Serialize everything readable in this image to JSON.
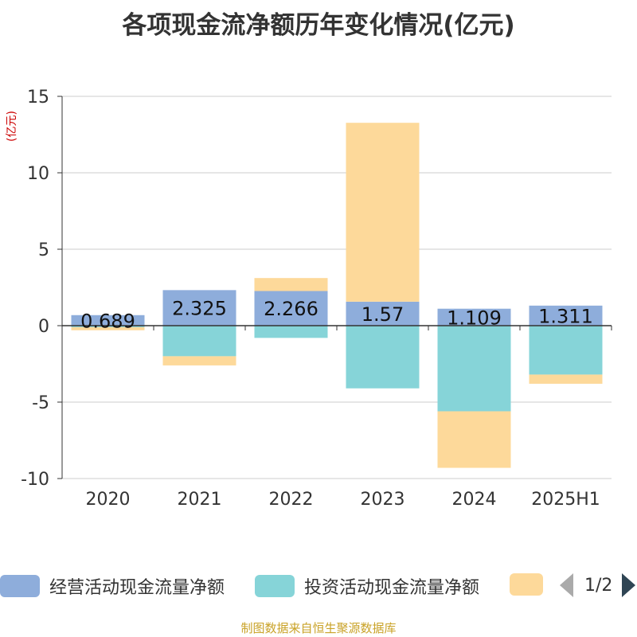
{
  "title": "各项现金流净额历年变化情况(亿元)",
  "unit_label": "(亿元)",
  "legend": {
    "items": [
      {
        "label": "经营活动现金流量净额",
        "color": "#8eaddb"
      },
      {
        "label": "投资活动现金流量净额",
        "color": "#86d4d8"
      },
      {
        "label": "",
        "color": "#fdd99a"
      }
    ],
    "page_text": "1/2"
  },
  "source": "制图数据来自恒生聚源数据库",
  "chart_data": {
    "type": "bar",
    "stacked": true,
    "categories": [
      "2020",
      "2021",
      "2022",
      "2023",
      "2024",
      "2025H1"
    ],
    "ylim": [
      -10,
      15
    ],
    "yticks": [
      15,
      10,
      5,
      0,
      -5,
      -10
    ],
    "grid": true,
    "series": [
      {
        "name": "经营活动现金流量净额",
        "color": "#8eaddb",
        "values": [
          0.689,
          2.325,
          2.266,
          1.57,
          1.109,
          1.311
        ],
        "show_labels": true
      },
      {
        "name": "投资活动现金流量净额",
        "color": "#86d4d8",
        "values": [
          -0.1,
          -2.0,
          -0.8,
          -4.1,
          -5.6,
          -3.2
        ],
        "show_labels": false
      },
      {
        "color": "#fdd99a",
        "values": [
          -0.2,
          -0.6,
          0.85,
          11.7,
          -3.7,
          -0.6
        ],
        "show_labels": false
      }
    ]
  }
}
